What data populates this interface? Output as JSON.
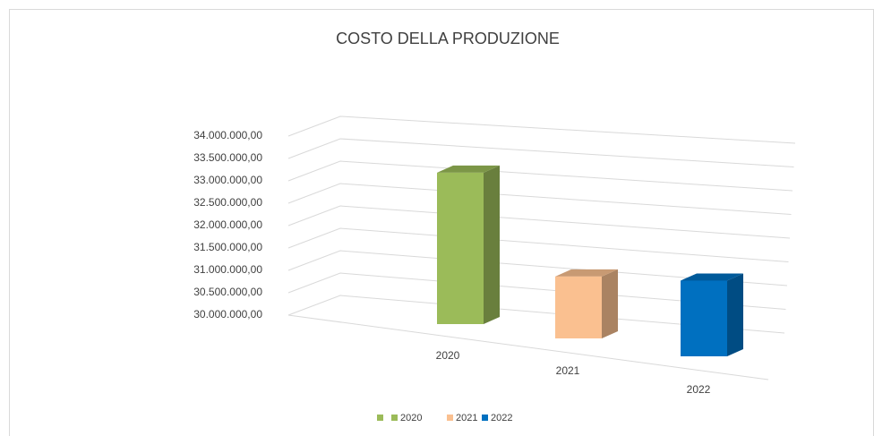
{
  "chart_data": {
    "type": "bar3d",
    "title": "COSTO DELLA PRODUZIONE",
    "categories": [
      "2020",
      "2021",
      "2022"
    ],
    "values": [
      33300000,
      31350000,
      31650000
    ],
    "colors": [
      "#9bbb59",
      "#fac090",
      "#0070c0"
    ],
    "ylim": [
      30000000,
      34000000
    ],
    "yticks": [
      {
        "value": 30000000,
        "label": "30.000.000,00"
      },
      {
        "value": 30500000,
        "label": "30.500.000,00"
      },
      {
        "value": 31000000,
        "label": "31.000.000,00"
      },
      {
        "value": 31500000,
        "label": "31.500.000,00"
      },
      {
        "value": 32000000,
        "label": "32.000.000,00"
      },
      {
        "value": 32500000,
        "label": "32.500.000,00"
      },
      {
        "value": 33000000,
        "label": "33.000.000,00"
      },
      {
        "value": 33500000,
        "label": "33.500.000,00"
      },
      {
        "value": 34000000,
        "label": "34.000.000,00"
      }
    ],
    "grid": true,
    "legend": "bottom"
  }
}
